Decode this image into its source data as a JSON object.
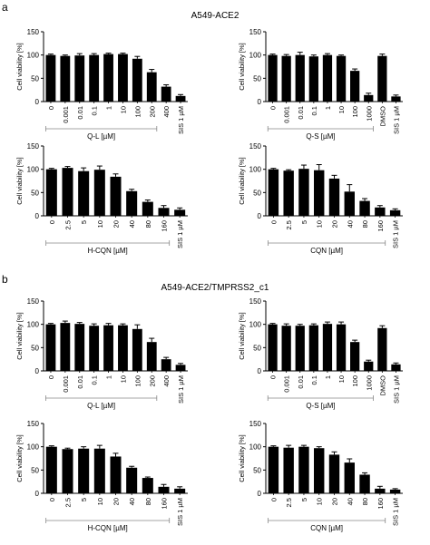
{
  "panel_labels": [
    "a",
    "b"
  ],
  "section_titles": [
    "A549-ACE2",
    "A549-ACE2/TMPRSS2_c1"
  ],
  "bar_color": "#000000",
  "chart_data": [
    {
      "type": "bar",
      "panel": "a",
      "ylabel": "Cell viability [%]",
      "xlabel": "Q-L [µM]",
      "ylim": [
        0,
        150
      ],
      "yticks": [
        0,
        50,
        100,
        150
      ],
      "bracket_count": 8,
      "categories": [
        "0",
        "0.001",
        "0.01",
        "0.1",
        "1",
        "10",
        "100",
        "200",
        "400",
        "SIS 1 µM"
      ],
      "values": [
        100,
        98,
        99,
        100,
        102,
        102,
        92,
        63,
        32,
        12
      ],
      "errors": [
        2,
        2,
        4,
        3,
        2,
        2,
        5,
        6,
        4,
        3
      ]
    },
    {
      "type": "bar",
      "panel": "a",
      "ylabel": "Cell viability [%]",
      "xlabel": "Q-S [µM]",
      "ylim": [
        0,
        150
      ],
      "yticks": [
        0,
        50,
        100,
        150
      ],
      "bracket_count": 8,
      "categories": [
        "0",
        "0.001",
        "0.01",
        "0.1",
        "1",
        "10",
        "100",
        "1000",
        "DMSO",
        "SIS 1 µM"
      ],
      "values": [
        100,
        98,
        100,
        97,
        100,
        98,
        66,
        14,
        98,
        11
      ],
      "errors": [
        2,
        3,
        6,
        3,
        3,
        2,
        4,
        4,
        4,
        3
      ]
    },
    {
      "type": "bar",
      "panel": "a",
      "ylabel": "Cell viability [%]",
      "xlabel": "H-CQN [µM]",
      "ylim": [
        0,
        150
      ],
      "yticks": [
        0,
        50,
        100,
        150
      ],
      "bracket_count": 8,
      "categories": [
        "0",
        "2.5",
        "5",
        "10",
        "20",
        "40",
        "80",
        "160",
        "SIS 1 µM"
      ],
      "values": [
        100,
        103,
        96,
        99,
        84,
        53,
        30,
        17,
        13
      ],
      "errors": [
        2,
        3,
        7,
        8,
        6,
        4,
        4,
        5,
        4
      ]
    },
    {
      "type": "bar",
      "panel": "a",
      "ylabel": "Cell viability [%]",
      "xlabel": "CQN [µM]",
      "ylim": [
        0,
        150
      ],
      "yticks": [
        0,
        50,
        100,
        150
      ],
      "bracket_count": 8,
      "categories": [
        "0",
        "2.5",
        "5",
        "10",
        "20",
        "40",
        "80",
        "160",
        "SIS 1 µM"
      ],
      "values": [
        100,
        97,
        101,
        98,
        80,
        52,
        32,
        18,
        12
      ],
      "errors": [
        2,
        2,
        8,
        12,
        7,
        15,
        5,
        4,
        3
      ]
    },
    {
      "type": "bar",
      "panel": "b",
      "ylabel": "Cell viability [%]",
      "xlabel": "Q-L [µM]",
      "ylim": [
        0,
        150
      ],
      "yticks": [
        0,
        50,
        100,
        150
      ],
      "bracket_count": 8,
      "categories": [
        "0",
        "0.001",
        "0.01",
        "0.1",
        "1",
        "10",
        "100",
        "200",
        "400",
        "SIS 1 µM"
      ],
      "values": [
        100,
        103,
        101,
        97,
        98,
        98,
        90,
        62,
        25,
        13
      ],
      "errors": [
        2,
        4,
        3,
        4,
        4,
        3,
        9,
        8,
        4,
        3
      ]
    },
    {
      "type": "bar",
      "panel": "b",
      "ylabel": "Cell viability [%]",
      "xlabel": "Q-S [µM]",
      "ylim": [
        0,
        150
      ],
      "yticks": [
        0,
        50,
        100,
        150
      ],
      "bracket_count": 8,
      "categories": [
        "0",
        "0.001",
        "0.01",
        "0.1",
        "1",
        "10",
        "100",
        "1000",
        "DMSO",
        "SIS 1 µM"
      ],
      "values": [
        100,
        97,
        97,
        98,
        101,
        100,
        62,
        20,
        92,
        14
      ],
      "errors": [
        2,
        4,
        3,
        3,
        4,
        5,
        4,
        3,
        5,
        3
      ]
    },
    {
      "type": "bar",
      "panel": "b",
      "ylabel": "Cell viability [%]",
      "xlabel": "H-CQN [µM]",
      "ylim": [
        0,
        150
      ],
      "yticks": [
        0,
        50,
        100,
        150
      ],
      "bracket_count": 8,
      "categories": [
        "0",
        "2.5",
        "5",
        "10",
        "20",
        "40",
        "80",
        "160",
        "SIS 1 µM"
      ],
      "values": [
        100,
        95,
        96,
        96,
        79,
        55,
        33,
        14,
        10
      ],
      "errors": [
        2,
        2,
        4,
        7,
        7,
        3,
        2,
        5,
        4
      ]
    },
    {
      "type": "bar",
      "panel": "b",
      "ylabel": "Cell viability [%]",
      "xlabel": "CQN [µM]",
      "ylim": [
        0,
        150
      ],
      "yticks": [
        0,
        50,
        100,
        150
      ],
      "bracket_count": 8,
      "categories": [
        "0",
        "2.5",
        "5",
        "10",
        "20",
        "40",
        "80",
        "160",
        "SIS 1 µM"
      ],
      "values": [
        100,
        98,
        100,
        97,
        83,
        66,
        40,
        10,
        8
      ],
      "errors": [
        2,
        5,
        3,
        3,
        6,
        8,
        4,
        5,
        2
      ]
    }
  ]
}
